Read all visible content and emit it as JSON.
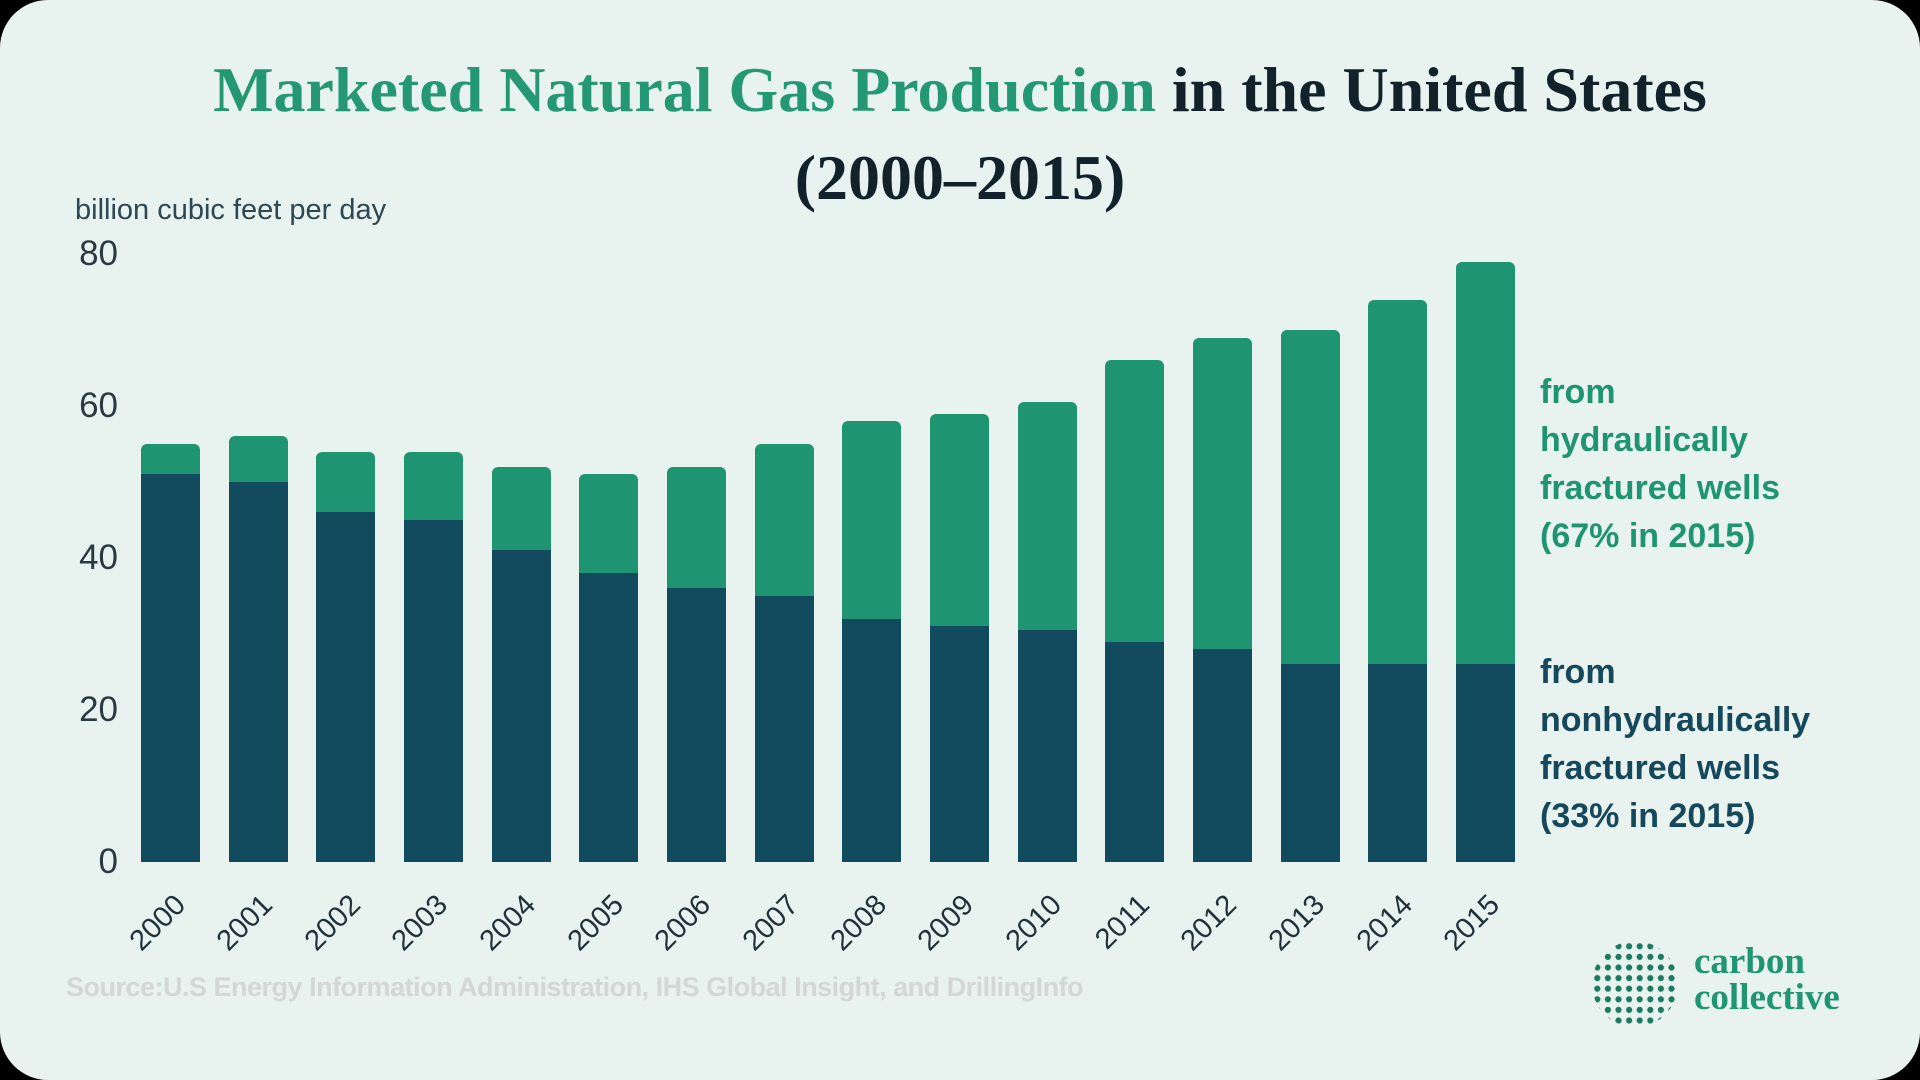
{
  "page": {
    "background_color": "#000000",
    "card_color": "#e8f2ee"
  },
  "title": {
    "highlight": "Marketed Natural Gas Production",
    "rest": " in the United States",
    "line2": "(2000–2015)",
    "highlight_color": "#249873",
    "text_color": "#12222b"
  },
  "axis": {
    "unit_label": "billion cubic feet per day"
  },
  "legend": {
    "fracked": {
      "text": "from\nhydraulically\nfractured wells\n(67% in 2015)",
      "color": "#1f9470"
    },
    "nonfracked": {
      "text": "from\nnonhydraulically\nfractured wells\n(33% in 2015)",
      "color": "#16485c"
    }
  },
  "source": "Source:U.S Energy Information Administration, IHS Global Insight, and DrillingInfo",
  "logo": {
    "line1": "carbon",
    "line2": "collective",
    "color": "#1f9571",
    "globe_color": "#1c7a5f"
  },
  "chart_data": {
    "type": "bar",
    "stacked": true,
    "title": "Marketed Natural Gas Production in the United States (2000–2015)",
    "xlabel": "",
    "ylabel": "billion cubic feet per day",
    "ylim": [
      0,
      80
    ],
    "yticks": [
      0,
      20,
      40,
      60,
      80
    ],
    "grid": false,
    "legend_position": "right",
    "categories": [
      "2000",
      "2001",
      "2002",
      "2003",
      "2004",
      "2005",
      "2006",
      "2007",
      "2008",
      "2009",
      "2010",
      "2011",
      "2012",
      "2013",
      "2014",
      "2015"
    ],
    "series": [
      {
        "name": "from nonhydraulically fractured wells (33% in 2015)",
        "color": "#124a5d",
        "values": [
          51,
          50,
          46,
          45,
          41,
          38,
          36,
          35,
          32,
          31,
          30.5,
          29,
          28,
          26,
          26,
          26
        ]
      },
      {
        "name": "from hydraulically fractured wells (67% in 2015)",
        "color": "#1e9470",
        "values": [
          4,
          6,
          8,
          9,
          11,
          13,
          16,
          20,
          26,
          28,
          30,
          37,
          41,
          44,
          48,
          53
        ]
      }
    ],
    "totals": [
      55,
      56,
      54,
      54,
      52,
      51,
      52,
      55,
      58,
      59,
      60.5,
      66,
      69,
      70,
      74,
      79
    ]
  }
}
